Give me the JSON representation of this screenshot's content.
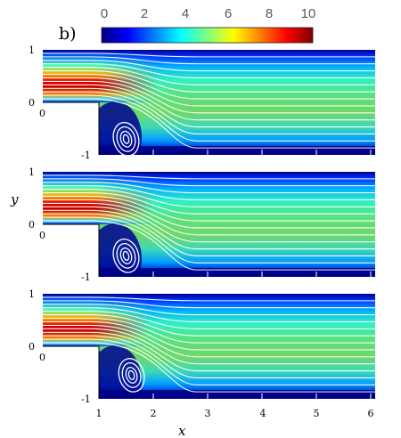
{
  "panel_label": "b)",
  "colorbar": {
    "ticks": [
      "0",
      "2",
      "4",
      "6",
      "8",
      "10"
    ],
    "min": 0,
    "max": 10,
    "colormap": [
      "#00007f",
      "#0000ff",
      "#007fff",
      "#00ffff",
      "#7fff7f",
      "#ffff00",
      "#ff7f00",
      "#ff0000",
      "#7f0000"
    ]
  },
  "axes": {
    "xlabel": "x",
    "ylabel": "y",
    "x_ticks": [
      "1",
      "2",
      "3",
      "4",
      "5",
      "6"
    ],
    "y_ticks_top": [
      "1",
      "0"
    ],
    "y_ticks_bottom": [
      "0",
      "-1"
    ]
  },
  "panels": [
    {
      "name": "panel-1",
      "vortex_center": [
        1.25,
        -0.7
      ],
      "hot_core_length": 1.8
    },
    {
      "name": "panel-2",
      "vortex_center": [
        1.25,
        -0.6
      ],
      "hot_core_length": 1.7
    },
    {
      "name": "panel-3",
      "vortex_center": [
        1.3,
        -0.55
      ],
      "hot_core_length": 1.6
    }
  ],
  "colors": {
    "streamline": "#ffffff",
    "background": "#ffffff",
    "step_region": "#ffffff"
  }
}
